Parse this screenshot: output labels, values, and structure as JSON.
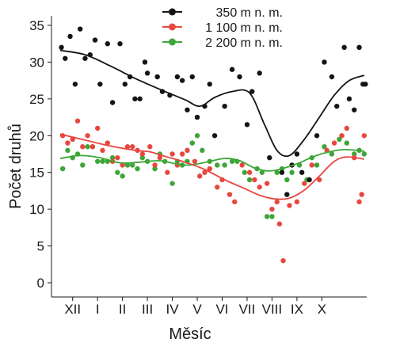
{
  "chart_data": {
    "type": "scatter",
    "xlabel": "Měsíc",
    "ylabel": "Počet druhů",
    "ylim": [
      0,
      35
    ],
    "yticks": [
      0,
      5,
      10,
      15,
      20,
      25,
      30,
      35
    ],
    "xlim": [
      0,
      12.3
    ],
    "categories": [
      "XII",
      "I",
      "II",
      "III",
      "IV",
      "V",
      "VI",
      "VII",
      "VIII",
      "IX",
      "X"
    ],
    "category_positions": [
      0.5,
      1.5,
      2.5,
      3.5,
      4.5,
      5.5,
      6.5,
      7.5,
      8.5,
      9.5,
      10.5
    ],
    "legend_position": "top",
    "grid": false,
    "series": [
      {
        "name": "350 m n. m.",
        "color": "#141414",
        "points": [
          [
            0.05,
            32
          ],
          [
            0.2,
            30.5
          ],
          [
            0.4,
            33.5
          ],
          [
            0.6,
            27
          ],
          [
            0.8,
            34.5
          ],
          [
            1.0,
            30.5
          ],
          [
            1.2,
            31
          ],
          [
            1.4,
            33
          ],
          [
            1.6,
            27
          ],
          [
            1.9,
            32.5
          ],
          [
            2.1,
            24.5
          ],
          [
            2.4,
            32.5
          ],
          [
            2.6,
            27
          ],
          [
            2.8,
            28
          ],
          [
            3.0,
            25
          ],
          [
            3.2,
            25
          ],
          [
            3.4,
            30
          ],
          [
            3.5,
            28.5
          ],
          [
            3.9,
            28
          ],
          [
            4.1,
            26
          ],
          [
            4.4,
            25.5
          ],
          [
            4.7,
            28
          ],
          [
            4.9,
            27.5
          ],
          [
            5.1,
            23.5
          ],
          [
            5.3,
            28
          ],
          [
            5.5,
            22.5
          ],
          [
            5.8,
            24
          ],
          [
            6.0,
            27
          ],
          [
            6.2,
            20
          ],
          [
            6.6,
            24
          ],
          [
            6.9,
            29
          ],
          [
            7.2,
            28
          ],
          [
            7.5,
            21.5
          ],
          [
            7.7,
            26
          ],
          [
            8.0,
            28.5
          ],
          [
            8.4,
            17
          ],
          [
            8.9,
            15
          ],
          [
            9.1,
            12
          ],
          [
            9.3,
            16
          ],
          [
            9.5,
            17.5
          ],
          [
            9.7,
            15
          ],
          [
            10.0,
            14
          ],
          [
            10.3,
            20
          ],
          [
            10.6,
            30
          ],
          [
            10.9,
            28
          ],
          [
            11.1,
            24
          ],
          [
            11.4,
            32
          ],
          [
            11.6,
            25
          ],
          [
            11.8,
            23.5
          ],
          [
            12.0,
            32
          ],
          [
            12.15,
            27
          ],
          [
            12.25,
            27
          ]
        ],
        "trend": [
          [
            0.0,
            31.6
          ],
          [
            1.0,
            31.0
          ],
          [
            2.0,
            29.5
          ],
          [
            3.0,
            27.8
          ],
          [
            4.0,
            26.3
          ],
          [
            5.0,
            24.9
          ],
          [
            5.6,
            24.0
          ],
          [
            6.2,
            25.2
          ],
          [
            6.9,
            26.0
          ],
          [
            7.6,
            25.8
          ],
          [
            8.2,
            21.5
          ],
          [
            8.7,
            18.0
          ],
          [
            9.2,
            17.3
          ],
          [
            9.8,
            19.5
          ],
          [
            10.4,
            22.5
          ],
          [
            11.0,
            25.5
          ],
          [
            11.6,
            27.5
          ],
          [
            12.2,
            28.2
          ]
        ]
      },
      {
        "name": "1 100 m n. m.",
        "color": "#e8473f",
        "points": [
          [
            0.1,
            20
          ],
          [
            0.3,
            19
          ],
          [
            0.5,
            19.5
          ],
          [
            0.7,
            22
          ],
          [
            0.9,
            18.5
          ],
          [
            1.1,
            20
          ],
          [
            1.3,
            18.5
          ],
          [
            1.5,
            21
          ],
          [
            1.7,
            18
          ],
          [
            1.9,
            19
          ],
          [
            2.1,
            16.5
          ],
          [
            2.3,
            17
          ],
          [
            2.5,
            16
          ],
          [
            2.7,
            18.5
          ],
          [
            2.9,
            18.5
          ],
          [
            3.1,
            18
          ],
          [
            3.3,
            17.5
          ],
          [
            3.6,
            18.5
          ],
          [
            3.8,
            16
          ],
          [
            4.0,
            17
          ],
          [
            4.3,
            15
          ],
          [
            4.5,
            17.5
          ],
          [
            4.7,
            16
          ],
          [
            4.9,
            17.5
          ],
          [
            5.1,
            18
          ],
          [
            5.4,
            16.5
          ],
          [
            5.6,
            14.5
          ],
          [
            5.8,
            15
          ],
          [
            6.0,
            15.5
          ],
          [
            6.3,
            13
          ],
          [
            6.5,
            14
          ],
          [
            6.8,
            12
          ],
          [
            7.0,
            11
          ],
          [
            7.3,
            16
          ],
          [
            7.6,
            15
          ],
          [
            7.8,
            14
          ],
          [
            8.0,
            13
          ],
          [
            8.3,
            13.5
          ],
          [
            8.5,
            10
          ],
          [
            8.7,
            11
          ],
          [
            8.8,
            8
          ],
          [
            8.95,
            3
          ],
          [
            9.2,
            10.5
          ],
          [
            9.5,
            11
          ],
          [
            9.8,
            13.5
          ],
          [
            10.1,
            16
          ],
          [
            10.4,
            14
          ],
          [
            10.7,
            18
          ],
          [
            11.0,
            19
          ],
          [
            11.3,
            20
          ],
          [
            11.5,
            21
          ],
          [
            11.8,
            17
          ],
          [
            12.0,
            11
          ],
          [
            12.1,
            12
          ],
          [
            12.2,
            20
          ]
        ],
        "trend": [
          [
            0.0,
            20.2
          ],
          [
            1.0,
            19.4
          ],
          [
            2.0,
            18.6
          ],
          [
            3.0,
            18.0
          ],
          [
            3.6,
            17.8
          ],
          [
            4.2,
            17.2
          ],
          [
            5.0,
            16.4
          ],
          [
            5.8,
            15.4
          ],
          [
            6.6,
            14.0
          ],
          [
            7.4,
            12.8
          ],
          [
            8.0,
            11.9
          ],
          [
            8.6,
            11.4
          ],
          [
            9.2,
            11.5
          ],
          [
            9.8,
            12.6
          ],
          [
            10.4,
            14.5
          ],
          [
            11.0,
            16.5
          ],
          [
            11.5,
            17.1
          ],
          [
            12.2,
            16.8
          ]
        ]
      },
      {
        "name": "2 200 m n. m.",
        "color": "#3da638",
        "points": [
          [
            0.1,
            15.5
          ],
          [
            0.3,
            18
          ],
          [
            0.5,
            17
          ],
          [
            0.7,
            17.5
          ],
          [
            0.9,
            16
          ],
          [
            1.1,
            18.5
          ],
          [
            1.3,
            18.5
          ],
          [
            1.5,
            16.5
          ],
          [
            1.7,
            16.5
          ],
          [
            1.9,
            16.5
          ],
          [
            2.1,
            17
          ],
          [
            2.3,
            15
          ],
          [
            2.5,
            14.5
          ],
          [
            2.7,
            16
          ],
          [
            2.9,
            16
          ],
          [
            3.1,
            15.5
          ],
          [
            3.3,
            17
          ],
          [
            3.5,
            16.5
          ],
          [
            3.8,
            15.5
          ],
          [
            4.0,
            17.5
          ],
          [
            4.2,
            16.5
          ],
          [
            4.5,
            13.5
          ],
          [
            4.7,
            16.5
          ],
          [
            4.9,
            16
          ],
          [
            5.1,
            16.5
          ],
          [
            5.3,
            19
          ],
          [
            5.5,
            20
          ],
          [
            5.7,
            18
          ],
          [
            6.0,
            16.5
          ],
          [
            6.3,
            16
          ],
          [
            6.6,
            16
          ],
          [
            6.9,
            16.5
          ],
          [
            7.1,
            16.5
          ],
          [
            7.4,
            15
          ],
          [
            7.6,
            14
          ],
          [
            7.9,
            15.5
          ],
          [
            8.1,
            15
          ],
          [
            8.3,
            9
          ],
          [
            8.5,
            9
          ],
          [
            8.7,
            15
          ],
          [
            8.9,
            15.5
          ],
          [
            9.1,
            14
          ],
          [
            9.3,
            15
          ],
          [
            9.6,
            16
          ],
          [
            9.9,
            14
          ],
          [
            10.1,
            17
          ],
          [
            10.3,
            16
          ],
          [
            10.6,
            18.5
          ],
          [
            10.9,
            17.5
          ],
          [
            11.2,
            19.5
          ],
          [
            11.5,
            19
          ],
          [
            11.8,
            17.5
          ],
          [
            12.0,
            18
          ],
          [
            12.2,
            17.5
          ]
        ],
        "trend": [
          [
            0.0,
            16.9
          ],
          [
            0.8,
            17.3
          ],
          [
            1.6,
            17.0
          ],
          [
            2.4,
            16.3
          ],
          [
            3.2,
            16.4
          ],
          [
            4.0,
            16.6
          ],
          [
            4.6,
            16.2
          ],
          [
            5.2,
            16.0
          ],
          [
            6.0,
            16.5
          ],
          [
            6.6,
            16.9
          ],
          [
            7.2,
            16.6
          ],
          [
            7.8,
            15.6
          ],
          [
            8.4,
            15.2
          ],
          [
            9.0,
            15.6
          ],
          [
            9.6,
            16.3
          ],
          [
            10.2,
            17.2
          ],
          [
            10.8,
            17.8
          ],
          [
            11.4,
            18.1
          ],
          [
            12.2,
            17.9
          ]
        ]
      }
    ]
  }
}
